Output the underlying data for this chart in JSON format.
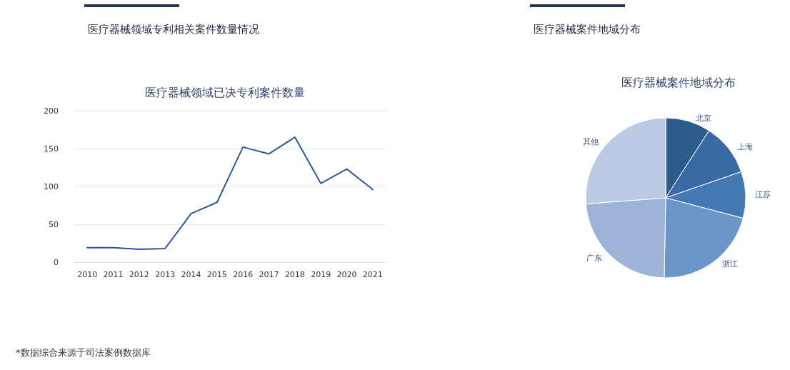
{
  "chart_data": [
    {
      "type": "line",
      "title": "医疗器械领域专利相关案件数量情况",
      "subtitle": "医疗器械领域已决专利案件数量",
      "categories": [
        "2010",
        "2011",
        "2012",
        "2013",
        "2014",
        "2015",
        "2016",
        "2017",
        "2018",
        "2019",
        "2020",
        "2021"
      ],
      "values": [
        19,
        19,
        17,
        18,
        64,
        79,
        152,
        143,
        165,
        104,
        123,
        96
      ],
      "color": "#2a5a9c",
      "ylim": [
        0,
        200
      ],
      "yticks": [
        0,
        50,
        100,
        150,
        200
      ],
      "grid": "y",
      "legend": false,
      "marker": "none",
      "line_style": "solid",
      "annotations": [
        "*数据综合来源于司法案例数据库"
      ]
    },
    {
      "type": "pie",
      "title": "医疗器械案件地域分布",
      "subtitle": "医疗器械案件地域分布",
      "categories": [
        "北京",
        "上海",
        "江苏",
        "浙江",
        "广东",
        "其他"
      ],
      "values": [
        9.1,
        10.6,
        9.4,
        21.2,
        23.5,
        26.2
      ],
      "colors": [
        "#2f5b8c",
        "#3a6aa3",
        "#4479b5",
        "#6d95c8",
        "#9db4d8",
        "#bccbe3"
      ],
      "legend": false
    }
  ]
}
